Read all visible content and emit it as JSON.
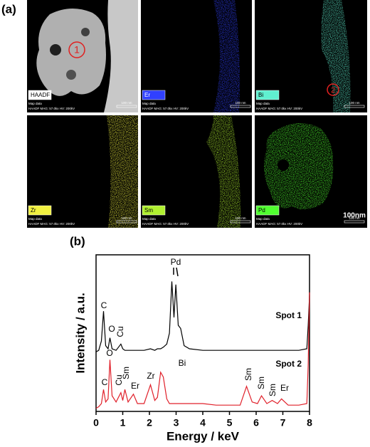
{
  "figure_labels": [
    "(a)",
    "(b)"
  ],
  "maps": {
    "panels": [
      {
        "label": "HAADF"
      },
      {
        "label": "Er"
      },
      {
        "label": "Bi"
      },
      {
        "label": "Zr"
      },
      {
        "label": "Sm"
      },
      {
        "label": "Pd"
      }
    ],
    "map_data": "Map data",
    "info": "HAADF  MAG: 57.0kx  HV: 200kV",
    "scale": "100 nm",
    "spots": [
      "1",
      "2"
    ],
    "big_scale": "100nm"
  },
  "chart_data": {
    "type": "line",
    "x": [
      0,
      0.1,
      0.2,
      0.28,
      0.36,
      0.45,
      0.52,
      0.6,
      0.75,
      0.93,
      1.0,
      1.08,
      1.2,
      1.4,
      1.55,
      1.8,
      2.04,
      2.2,
      2.3,
      2.42,
      2.52,
      2.65,
      2.75,
      2.84,
      2.92,
      2.99,
      3.08,
      3.17,
      3.3,
      3.5,
      4,
      4.5,
      5,
      5.4,
      5.64,
      5.85,
      6.05,
      6.2,
      6.4,
      6.6,
      6.8,
      6.95,
      7.2,
      7.6,
      7.9,
      7.95,
      8
    ],
    "series": [
      {
        "name": "Spot 1",
        "color": "#000000",
        "values": [
          38,
          39,
          45,
          64,
          42,
          40,
          47,
          40,
          39,
          43,
          40,
          39,
          39,
          39,
          39,
          39,
          40,
          39,
          40,
          40,
          41,
          43,
          50,
          83,
          60,
          81,
          55,
          53,
          42,
          40,
          39,
          39,
          39,
          39,
          39,
          39,
          39,
          39,
          39,
          39,
          39,
          39,
          39,
          39,
          40,
          55,
          74
        ]
      },
      {
        "name": "Spot 2",
        "color": "#e0202a",
        "values": [
          2,
          3,
          5,
          14,
          6,
          8,
          33,
          10,
          6,
          12,
          7,
          14,
          6,
          11,
          5,
          5,
          17,
          7,
          9,
          25,
          22,
          8,
          5,
          5,
          5,
          5,
          5,
          5,
          5,
          5,
          5,
          4,
          4,
          4,
          16,
          6,
          5,
          10,
          5,
          7,
          5,
          8,
          4,
          4,
          5,
          30,
          76
        ]
      }
    ],
    "annotations": [
      [
        "C",
        "O",
        "Cu",
        "Pd"
      ],
      [
        "C",
        "O",
        "Cu",
        "Sm",
        "Er",
        "Zr",
        "Bi",
        "Sm",
        "Sm",
        "Sm",
        "Er"
      ]
    ],
    "xlabel": "Energy / keV",
    "ylabel": "Intensity / a.u.",
    "xlim": [
      0,
      8
    ],
    "xticks": [
      0,
      1,
      2,
      3,
      4,
      5,
      6,
      7,
      8
    ],
    "ylim": [
      0,
      100
    ]
  }
}
